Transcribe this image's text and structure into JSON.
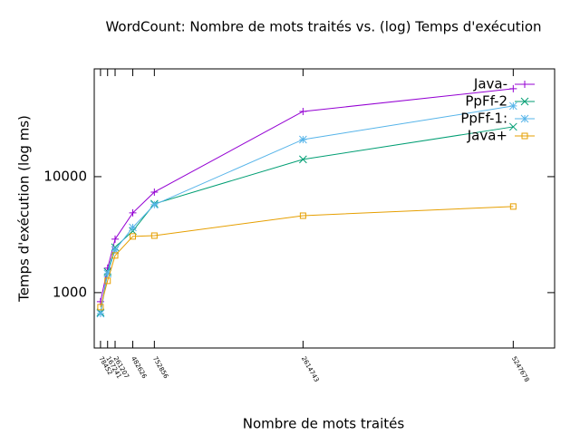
{
  "chart_data": {
    "type": "line",
    "title": "WordCount: Nombre de mots traités vs. (log) Temps d'exécution",
    "x_label": "Nombre de mots traités",
    "y_label": "Temps d'exécution (log ms)",
    "x": [
      78452,
      167241,
      261207,
      482626,
      752856,
      2614743,
      5247678
    ],
    "series": [
      {
        "name": "Java-",
        "color": "#9400d3",
        "marker": "plus",
        "values": [
          835,
          1625,
          2890,
          4870,
          7360,
          36500,
          57300
        ]
      },
      {
        "name": "PpFf-2",
        "color": "#009e73",
        "marker": "cross",
        "values": [
          673,
          1512,
          2460,
          3400,
          5830,
          14100,
          26900
        ]
      },
      {
        "name": "PpFf-1:",
        "color": "#56b4e9",
        "marker": "star",
        "values": [
          660,
          1459,
          2330,
          3650,
          5730,
          20900,
          40700
        ]
      },
      {
        "name": "Java+",
        "color": "#e69f00",
        "marker": "square",
        "values": [
          750,
          1263,
          2090,
          3050,
          3100,
          4610,
          5530
        ]
      }
    ],
    "xlim": [
      0,
      5766000
    ],
    "ylim": [
      333,
      85000
    ],
    "ylog": true,
    "yticks": [
      1000,
      10000
    ],
    "legend": "top-right"
  }
}
